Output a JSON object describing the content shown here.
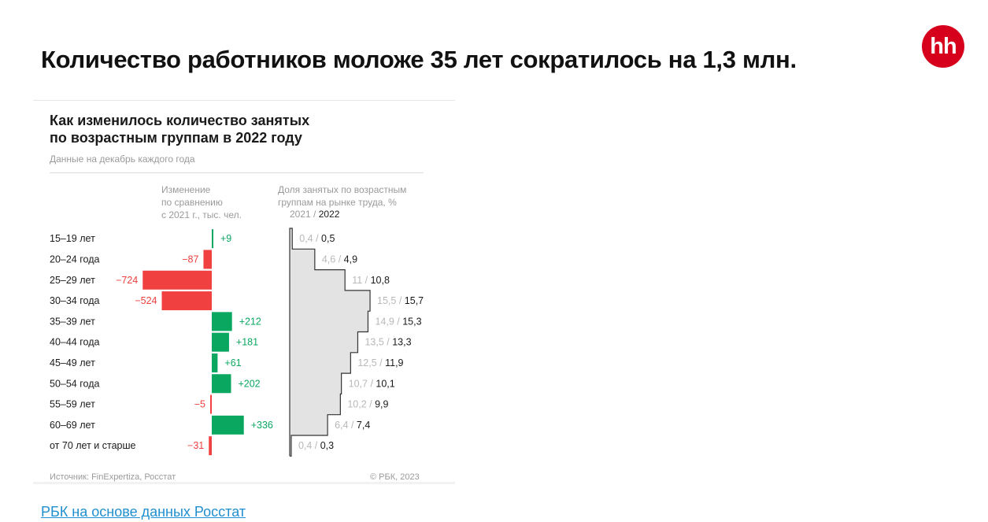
{
  "headline": "Количество работников моложе 35 лет сократилось на 1,3 млн.",
  "logo_text": "hh",
  "logo_color": "#d6001c",
  "source_link": "РБК на основе данных Росстат",
  "chart_data": {
    "type": "bar",
    "title": "Как изменилось количество занятых\nпо возрастным группам в 2022 году",
    "subtitle": "Данные на декабрь каждого года",
    "left_column_header": "Изменение\nпо сравнению\nс 2021 г., тыс. чел.",
    "right_column_header": "Доля занятых по возрастным\nгруппам на рынке труда, %",
    "legend_prev": "2021",
    "legend_sep": " / ",
    "legend_cur": "2022",
    "categories": [
      "15–19 лет",
      "20–24 года",
      "25–29 лет",
      "30–34 года",
      "35–39 лет",
      "40–44 года",
      "45–49 лет",
      "50–54 года",
      "55–59 лет",
      "60–69 лет",
      "от 70 лет и старше"
    ],
    "series": [
      {
        "key": "change",
        "values": [
          9,
          -87,
          -724,
          -524,
          212,
          181,
          61,
          202,
          -5,
          336,
          -31
        ],
        "labels": [
          "+9",
          "−87",
          "−724",
          "−524",
          "+212",
          "+181",
          "+61",
          "+202",
          "−5",
          "+336",
          "−31"
        ]
      },
      {
        "key": "share_2021",
        "values": [
          0.4,
          4.6,
          11,
          15.5,
          14.9,
          13.5,
          12.5,
          10.7,
          10.2,
          6.4,
          0.4
        ],
        "labels": [
          "0,4",
          "4,6",
          "11",
          "15,5",
          "14,9",
          "13,5",
          "12,5",
          "10,7",
          "10,2",
          "6,4",
          "0,4"
        ]
      },
      {
        "key": "share_2022",
        "values": [
          0.5,
          4.9,
          10.8,
          15.7,
          15.3,
          13.3,
          11.9,
          10.1,
          9.9,
          7.4,
          0.3
        ],
        "labels": [
          "0,5",
          "4,9",
          "10,8",
          "15,7",
          "15,3",
          "13,3",
          "11,9",
          "10,1",
          "9,9",
          "7,4",
          "0,3"
        ]
      }
    ],
    "colors": {
      "positive": "#0aa760",
      "negative": "#f04040",
      "share_fill": "#e3e3e3",
      "share_outline": "#333333",
      "prev_label": "#b8b8b8",
      "cur_label": "#1a1a1a"
    },
    "source": "Источник: FinExpertiza, Росстат",
    "copyright": "© РБК, 2023"
  }
}
